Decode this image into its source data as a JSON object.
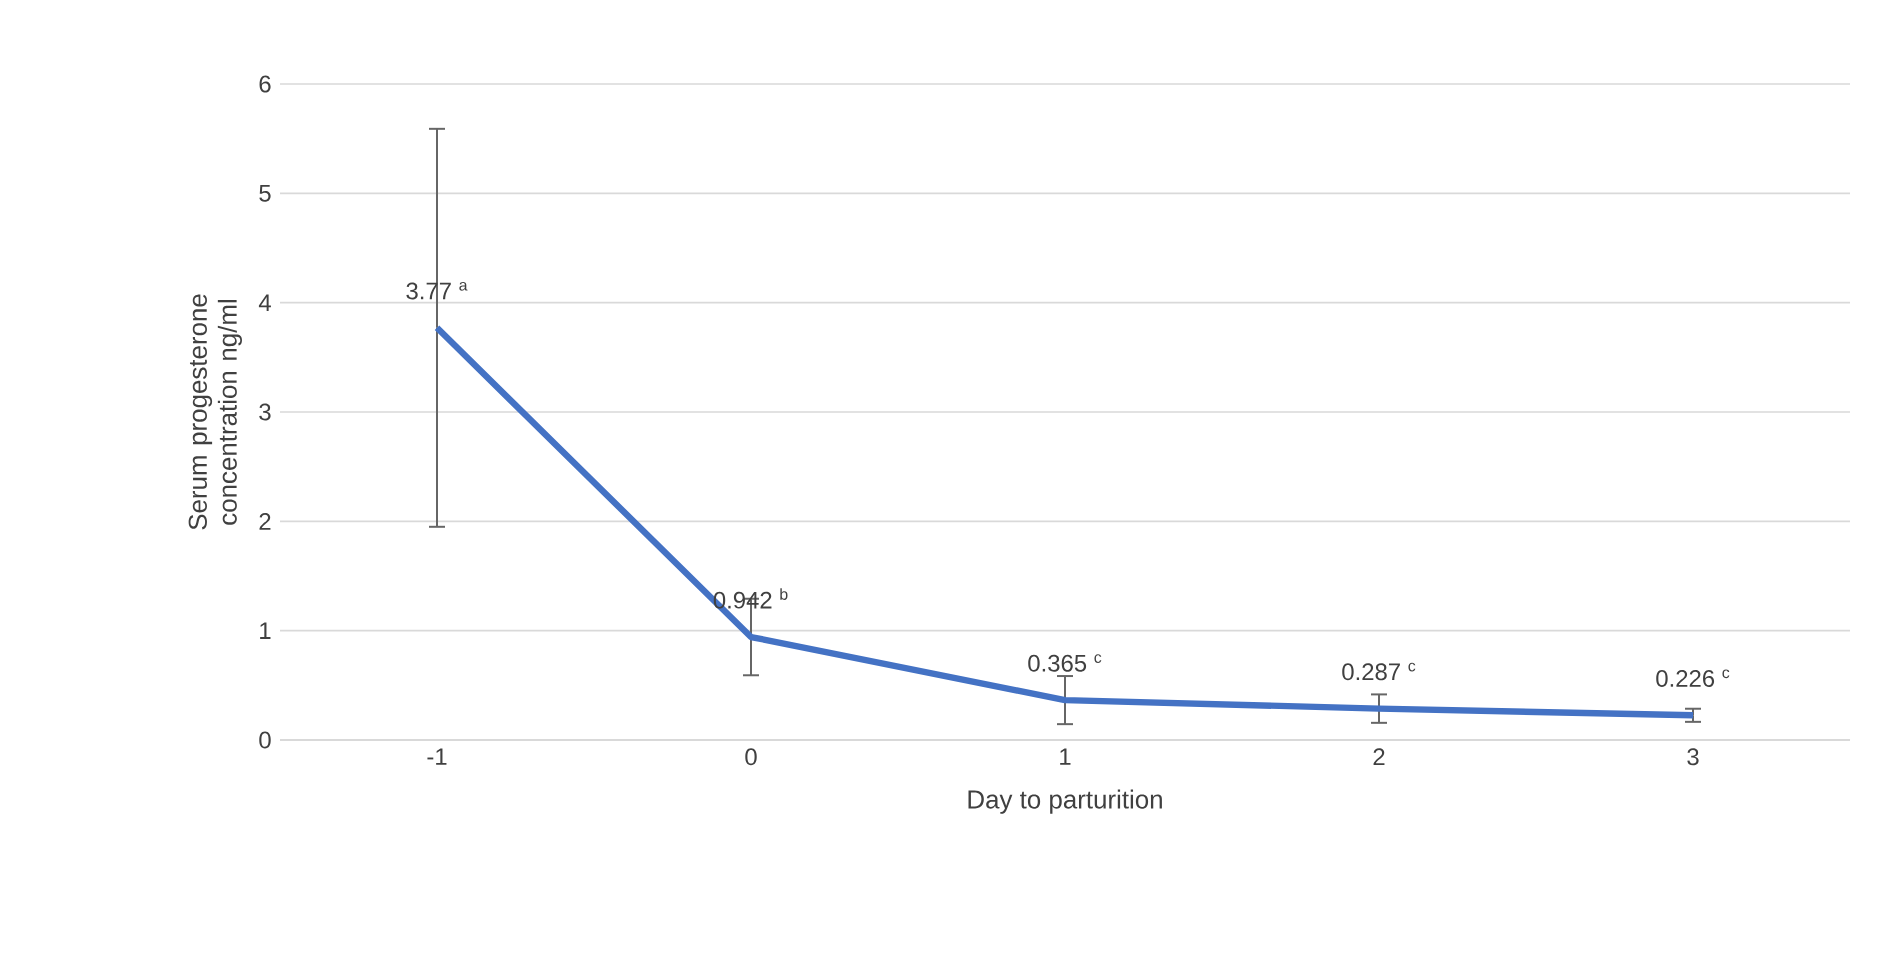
{
  "chart_data": {
    "type": "line",
    "xlabel": "Day to parturition",
    "ylabel": "Serum progesterone concentration ng/ml",
    "categories": [
      "-1",
      "0",
      "1",
      "2",
      "3"
    ],
    "series": [
      {
        "color": "#4472c4",
        "values": [
          3.77,
          0.942,
          0.365,
          0.287,
          0.226
        ],
        "errors": [
          1.82,
          0.35,
          0.22,
          0.13,
          0.06
        ],
        "value_labels": [
          "3.77 $^{a}$",
          "0.942 $^{b}$",
          "0.365 $^{c}$",
          "0.287 $^{c}$",
          "0.226 $^{c}$"
        ]
      }
    ],
    "ylim": [
      0,
      6
    ],
    "yticks": [
      0,
      1,
      2,
      3,
      4,
      5,
      6
    ],
    "grid": "y",
    "marker": "none",
    "line_style": "solid"
  }
}
